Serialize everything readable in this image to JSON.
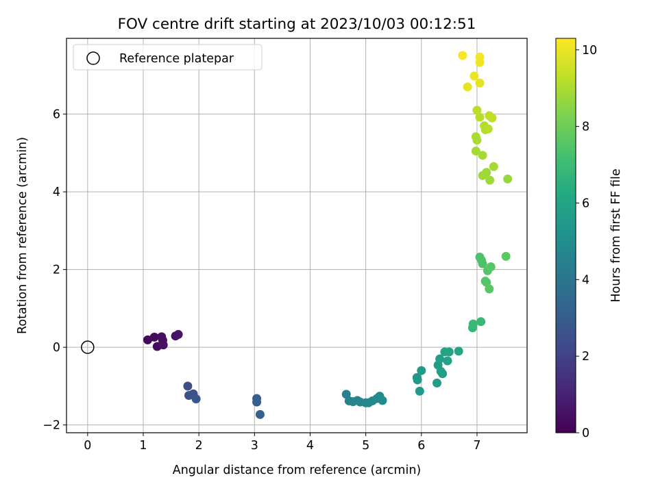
{
  "chart_data": {
    "type": "scatter",
    "title": "FOV centre drift starting at 2023/10/03 00:12:51",
    "xlabel": "Angular distance from reference (arcmin)",
    "ylabel": "Rotation from reference (arcmin)",
    "xlim": [
      -0.38,
      7.9
    ],
    "ylim": [
      -2.2,
      7.95
    ],
    "xticks": [
      0,
      1,
      2,
      3,
      4,
      5,
      6,
      7
    ],
    "yticks": [
      -2,
      0,
      2,
      4,
      6
    ],
    "grid": true,
    "legend": {
      "position": "top-left",
      "entries": [
        "Reference platepar"
      ]
    },
    "reference": {
      "name": "Reference platepar",
      "x": 0,
      "y": 0
    },
    "colorbar": {
      "label": "Hours from first FF file",
      "range": [
        0,
        10.3
      ],
      "ticks": [
        0,
        2,
        4,
        6,
        8,
        10
      ],
      "colormap": "viridis"
    },
    "points": [
      {
        "x": 1.08,
        "y": 0.19,
        "c": 0.2
      },
      {
        "x": 1.2,
        "y": 0.26,
        "c": 0.3
      },
      {
        "x": 1.25,
        "y": 0.02,
        "c": 0.3
      },
      {
        "x": 1.33,
        "y": 0.27,
        "c": 0.4
      },
      {
        "x": 1.35,
        "y": 0.18,
        "c": 0.4
      },
      {
        "x": 1.36,
        "y": 0.06,
        "c": 0.5
      },
      {
        "x": 1.58,
        "y": 0.29,
        "c": 0.5
      },
      {
        "x": 1.63,
        "y": 0.33,
        "c": 0.6
      },
      {
        "x": 1.8,
        "y": -1.0,
        "c": 2.4
      },
      {
        "x": 1.82,
        "y": -1.24,
        "c": 2.5
      },
      {
        "x": 1.9,
        "y": -1.2,
        "c": 2.6
      },
      {
        "x": 1.95,
        "y": -1.33,
        "c": 2.7
      },
      {
        "x": 3.04,
        "y": -1.32,
        "c": 3.0
      },
      {
        "x": 3.04,
        "y": -1.41,
        "c": 3.1
      },
      {
        "x": 3.1,
        "y": -1.73,
        "c": 3.1
      },
      {
        "x": 4.65,
        "y": -1.21,
        "c": 4.4
      },
      {
        "x": 4.7,
        "y": -1.38,
        "c": 4.5
      },
      {
        "x": 4.77,
        "y": -1.4,
        "c": 4.6
      },
      {
        "x": 4.85,
        "y": -1.37,
        "c": 4.6
      },
      {
        "x": 4.9,
        "y": -1.41,
        "c": 4.7
      },
      {
        "x": 5.0,
        "y": -1.43,
        "c": 4.7
      },
      {
        "x": 5.05,
        "y": -1.43,
        "c": 4.8
      },
      {
        "x": 5.12,
        "y": -1.38,
        "c": 4.8
      },
      {
        "x": 5.2,
        "y": -1.32,
        "c": 4.9
      },
      {
        "x": 5.25,
        "y": -1.26,
        "c": 4.9
      },
      {
        "x": 5.3,
        "y": -1.37,
        "c": 5.0
      },
      {
        "x": 5.92,
        "y": -0.78,
        "c": 5.5
      },
      {
        "x": 5.93,
        "y": -0.84,
        "c": 5.5
      },
      {
        "x": 5.97,
        "y": -1.13,
        "c": 5.6
      },
      {
        "x": 6.0,
        "y": -0.6,
        "c": 5.6
      },
      {
        "x": 6.28,
        "y": -0.92,
        "c": 5.7
      },
      {
        "x": 6.3,
        "y": -0.46,
        "c": 5.7
      },
      {
        "x": 6.33,
        "y": -0.3,
        "c": 5.8
      },
      {
        "x": 6.35,
        "y": -0.62,
        "c": 5.8
      },
      {
        "x": 6.38,
        "y": -0.68,
        "c": 5.8
      },
      {
        "x": 6.42,
        "y": -0.12,
        "c": 5.9
      },
      {
        "x": 6.47,
        "y": -0.35,
        "c": 5.9
      },
      {
        "x": 6.5,
        "y": -0.12,
        "c": 6.0
      },
      {
        "x": 6.67,
        "y": -0.1,
        "c": 6.0
      },
      {
        "x": 6.92,
        "y": 0.5,
        "c": 6.8
      },
      {
        "x": 6.93,
        "y": 0.6,
        "c": 6.9
      },
      {
        "x": 7.07,
        "y": 0.66,
        "c": 6.9
      },
      {
        "x": 7.05,
        "y": 2.32,
        "c": 7.3
      },
      {
        "x": 7.08,
        "y": 2.24,
        "c": 7.4
      },
      {
        "x": 7.1,
        "y": 2.15,
        "c": 7.4
      },
      {
        "x": 7.15,
        "y": 1.7,
        "c": 7.5
      },
      {
        "x": 7.17,
        "y": 1.67,
        "c": 7.5
      },
      {
        "x": 7.19,
        "y": 1.97,
        "c": 7.5
      },
      {
        "x": 7.22,
        "y": 1.5,
        "c": 7.6
      },
      {
        "x": 7.25,
        "y": 2.07,
        "c": 7.6
      },
      {
        "x": 7.52,
        "y": 2.34,
        "c": 7.7
      },
      {
        "x": 6.98,
        "y": 5.05,
        "c": 8.9
      },
      {
        "x": 6.98,
        "y": 5.42,
        "c": 9.0
      },
      {
        "x": 7.0,
        "y": 5.33,
        "c": 9.0
      },
      {
        "x": 7.0,
        "y": 6.1,
        "c": 9.2
      },
      {
        "x": 7.05,
        "y": 5.92,
        "c": 9.2
      },
      {
        "x": 7.1,
        "y": 4.94,
        "c": 8.9
      },
      {
        "x": 7.1,
        "y": 4.42,
        "c": 8.8
      },
      {
        "x": 7.13,
        "y": 5.7,
        "c": 9.1
      },
      {
        "x": 7.15,
        "y": 5.6,
        "c": 9.1
      },
      {
        "x": 7.17,
        "y": 4.5,
        "c": 8.8
      },
      {
        "x": 7.2,
        "y": 5.62,
        "c": 9.2
      },
      {
        "x": 7.22,
        "y": 5.96,
        "c": 9.3
      },
      {
        "x": 7.23,
        "y": 4.3,
        "c": 8.8
      },
      {
        "x": 7.27,
        "y": 5.9,
        "c": 9.3
      },
      {
        "x": 7.3,
        "y": 4.65,
        "c": 8.9
      },
      {
        "x": 7.55,
        "y": 4.33,
        "c": 8.7
      },
      {
        "x": 6.74,
        "y": 7.51,
        "c": 10.2
      },
      {
        "x": 6.83,
        "y": 6.7,
        "c": 9.9
      },
      {
        "x": 6.95,
        "y": 6.98,
        "c": 10.0
      },
      {
        "x": 7.05,
        "y": 7.47,
        "c": 10.2
      },
      {
        "x": 7.05,
        "y": 7.33,
        "c": 10.1
      },
      {
        "x": 7.05,
        "y": 6.8,
        "c": 9.9
      }
    ]
  }
}
